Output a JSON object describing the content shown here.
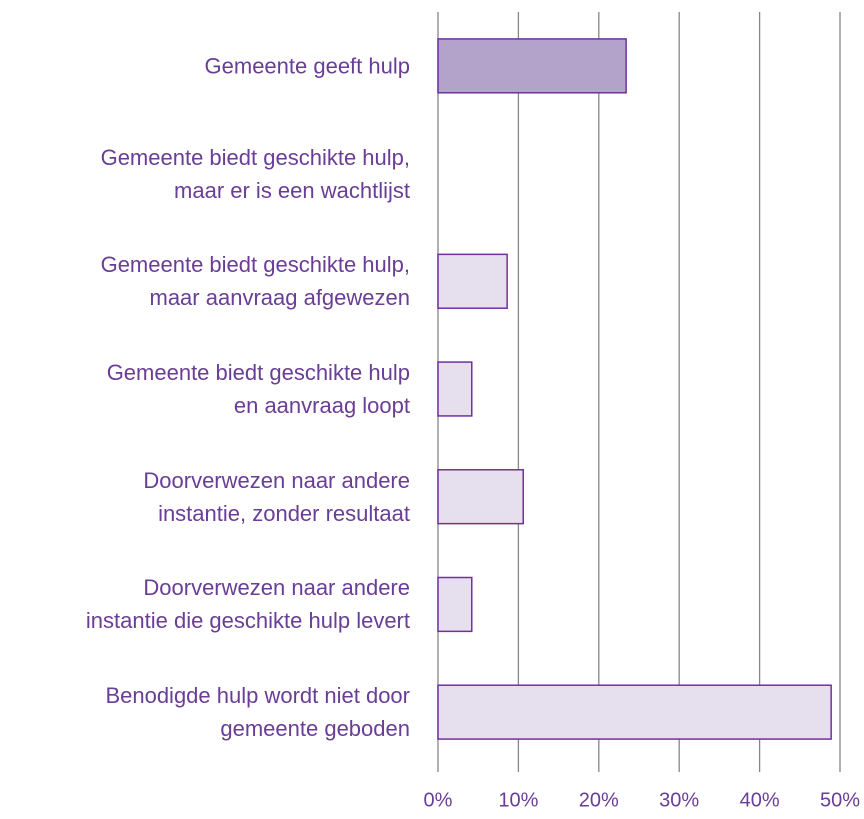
{
  "chart_data": {
    "type": "barh",
    "categories": [
      "Gemeente geeft hulp",
      "Gemeente biedt geschikte hulp,\nmaar er is een wachtlijst",
      "Gemeente biedt geschikte hulp,\nmaar aanvraag afgewezen",
      "Gemeente biedt geschikte hulp\nen aanvraag loopt",
      "Doorverwezen naar andere\ninstantie, zonder resultaat",
      "Doorverwezen naar andere\ninstantie die geschikte hulp levert",
      "Benodigde hulp wordt niet door\ngemeente geboden"
    ],
    "values": [
      23.4,
      0,
      8.6,
      4.2,
      10.6,
      4.2,
      48.9
    ],
    "colors": [
      "#b3a2c9",
      "#e6e0ee",
      "#e6e0ee",
      "#e6e0ee",
      "#e6e0ee",
      "#e6e0ee",
      "#e6e0ee"
    ],
    "edge_color": "#7030a0",
    "xlim": [
      0,
      50
    ],
    "xticks": [
      {
        "value": 0,
        "label": "0%"
      },
      {
        "value": 10,
        "label": "10%"
      },
      {
        "value": 20,
        "label": "20%"
      },
      {
        "value": 30,
        "label": "30%"
      },
      {
        "value": 40,
        "label": "40%"
      },
      {
        "value": 50,
        "label": "50%"
      }
    ],
    "grid": true
  }
}
